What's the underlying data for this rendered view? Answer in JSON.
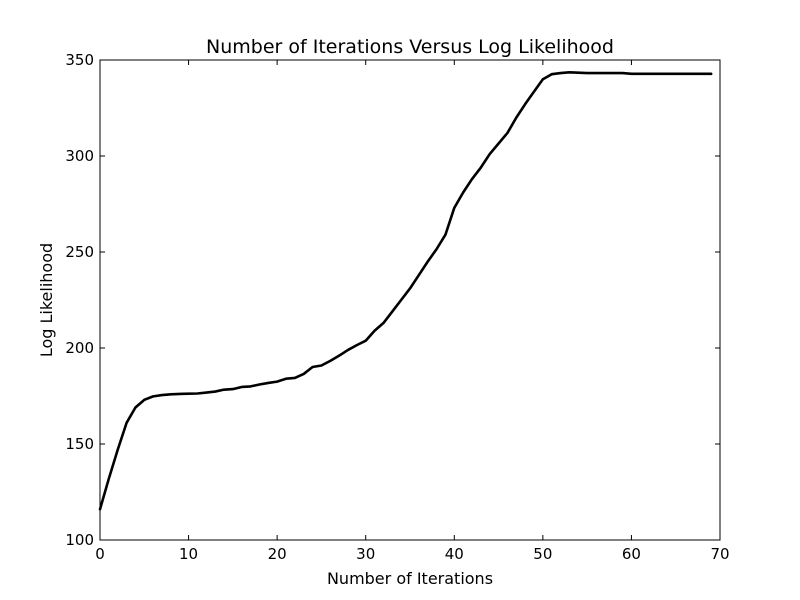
{
  "chart_data": {
    "type": "line",
    "title": "Number of Iterations Versus Log Likelihood",
    "xlabel": "Number of Iterations",
    "ylabel": "Log Likelihood",
    "xlim": [
      0,
      70
    ],
    "ylim": [
      100,
      350
    ],
    "xticks": [
      0,
      10,
      20,
      30,
      40,
      50,
      60,
      70
    ],
    "yticks": [
      100,
      150,
      200,
      250,
      300,
      350
    ],
    "grid": false,
    "line_color": "#000000",
    "series": [
      {
        "x": [
          0,
          1,
          2,
          3,
          4,
          5,
          6,
          7,
          8,
          9,
          10,
          11,
          12,
          13,
          14,
          15,
          16,
          17,
          18,
          19,
          20,
          21,
          22,
          23,
          24,
          25,
          26,
          27,
          28,
          29,
          30,
          31,
          32,
          33,
          34,
          35,
          36,
          37,
          38,
          39,
          40,
          41,
          42,
          43,
          44,
          45,
          46,
          47,
          48,
          49,
          50,
          51,
          52,
          53,
          54,
          55,
          56,
          57,
          58,
          59,
          60,
          61,
          62,
          63,
          64,
          65,
          66,
          67,
          68,
          69
        ],
        "values": [
          116,
          132,
          147,
          161,
          169,
          173,
          174.8,
          175.5,
          175.9,
          176.1,
          176.2,
          176.3,
          176.8,
          177.3,
          178.3,
          178.6,
          179.7,
          180,
          181,
          181.8,
          182.5,
          184,
          184.4,
          186.5,
          190.1,
          190.9,
          193.3,
          196,
          199,
          201.5,
          203.8,
          209,
          213,
          219,
          225,
          231,
          238,
          245,
          251.5,
          259,
          273,
          281,
          288,
          294,
          301,
          306.5,
          312,
          320,
          327,
          333.5,
          340,
          342.6,
          343.2,
          343.6,
          343.4,
          343.2,
          343.2,
          343.2,
          343.2,
          343.2,
          342.8,
          342.8,
          342.8,
          342.8,
          342.8,
          342.8,
          342.8,
          342.8,
          342.8,
          342.8
        ]
      }
    ]
  }
}
